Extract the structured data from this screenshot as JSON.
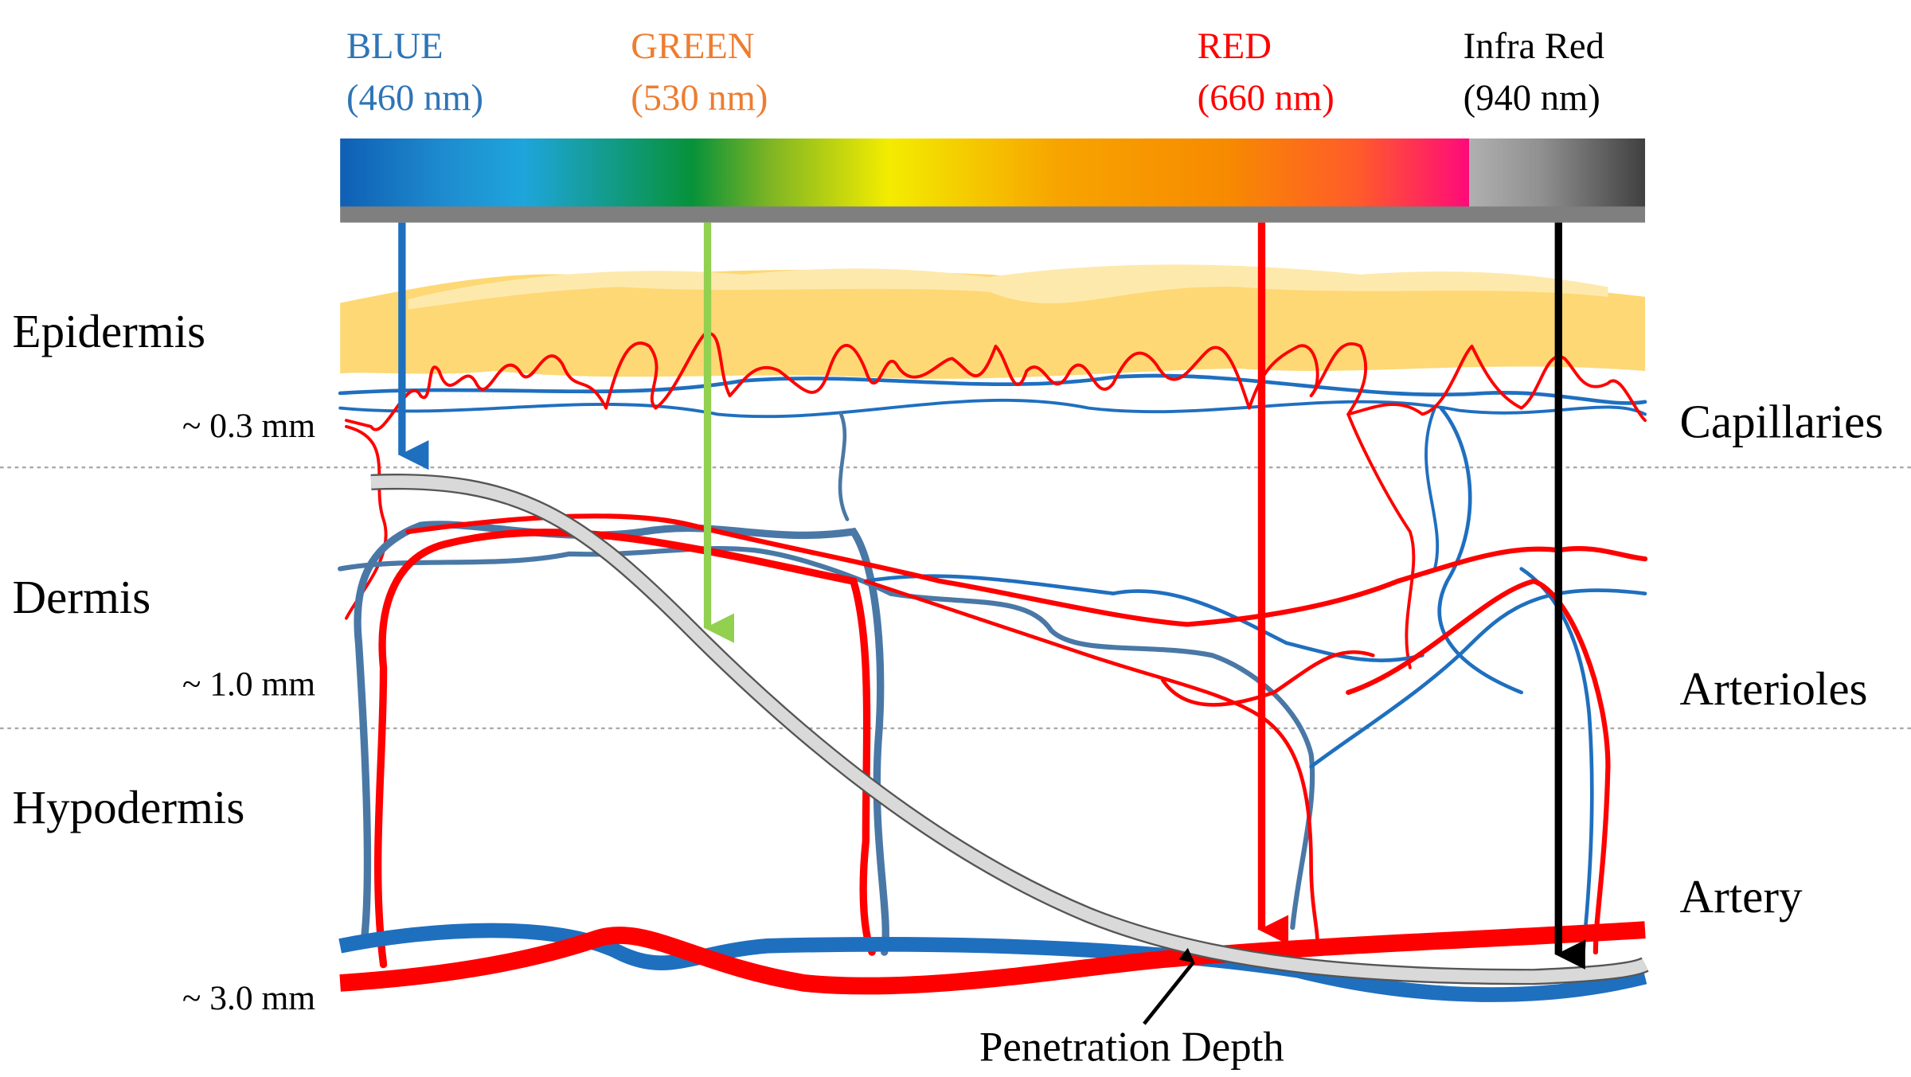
{
  "bands": [
    {
      "name": "BLUE",
      "wavelength": "(460 nm)"
    },
    {
      "name": "GREEN",
      "wavelength": "(530 nm)"
    },
    {
      "name": "RED",
      "wavelength": "(660 nm)"
    },
    {
      "name": "Infra Red",
      "wavelength": "(940 nm)"
    }
  ],
  "layers": [
    "Epidermis",
    "Dermis",
    "Hypodermis"
  ],
  "depths": [
    "~ 0.3 mm",
    "~ 1.0 mm",
    "~ 3.0 mm"
  ],
  "vessels": [
    "Capillaries",
    "Arterioles",
    "Artery"
  ],
  "annotation": "Penetration Depth"
}
